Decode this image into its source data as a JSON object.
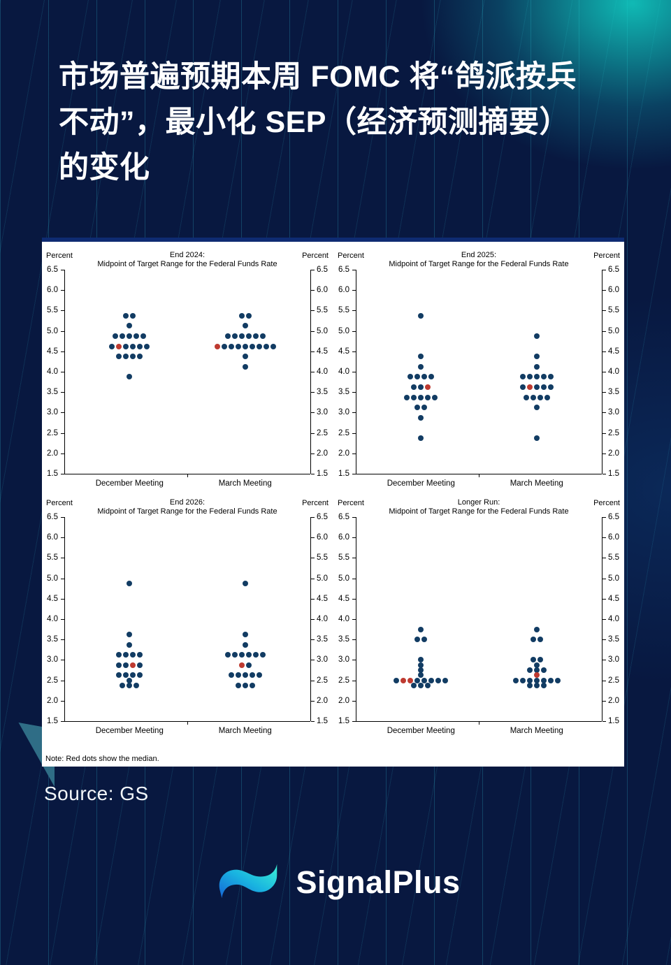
{
  "colors": {
    "background": "#081840",
    "accent_cyan": "#16dede",
    "panel_top_border": "#0e2b72",
    "dot": "#123c63",
    "median_dot": "#be3a30"
  },
  "title": {
    "lines": [
      "市场普遍预期本周 FOMC 将“鸽派按兵",
      "不动”，最小化 SEP（经济预测摘要）",
      "的变化"
    ]
  },
  "note": "Note: Red dots show the median.",
  "source": "Source: GS",
  "logo": {
    "text": "SignalPlus"
  },
  "chart_data": [
    {
      "type": "scatter",
      "id": "end-2024",
      "title": "End 2024:",
      "subtitle": "Midpoint of Target Range for the Federal Funds Rate",
      "ylabel": "Percent",
      "ylim": [
        1.5,
        6.5
      ],
      "ytick_step": 0.5,
      "categories": [
        "December Meeting",
        "March Meeting"
      ],
      "series": [
        {
          "name": "December Meeting",
          "dots": [
            {
              "y": 5.375,
              "n": 2
            },
            {
              "y": 5.125,
              "n": 1
            },
            {
              "y": 4.875,
              "n": 5
            },
            {
              "y": 4.625,
              "n": 6,
              "red": [
                1
              ]
            },
            {
              "y": 4.375,
              "n": 4
            },
            {
              "y": 3.875,
              "n": 1
            }
          ]
        },
        {
          "name": "March Meeting",
          "dots": [
            {
              "y": 5.375,
              "n": 2
            },
            {
              "y": 5.125,
              "n": 1
            },
            {
              "y": 4.875,
              "n": 6
            },
            {
              "y": 4.625,
              "n": 9,
              "red": [
                0
              ]
            },
            {
              "y": 4.375,
              "n": 1
            },
            {
              "y": 4.125,
              "n": 1
            }
          ]
        }
      ]
    },
    {
      "type": "scatter",
      "id": "end-2025",
      "title": "End 2025:",
      "subtitle": "Midpoint of Target Range for the Federal Funds Rate",
      "ylabel": "Percent",
      "ylim": [
        1.5,
        6.5
      ],
      "ytick_step": 0.5,
      "categories": [
        "December Meeting",
        "March Meeting"
      ],
      "series": [
        {
          "name": "December Meeting",
          "dots": [
            {
              "y": 5.375,
              "n": 1
            },
            {
              "y": 4.375,
              "n": 1
            },
            {
              "y": 4.125,
              "n": 1
            },
            {
              "y": 3.875,
              "n": 4
            },
            {
              "y": 3.625,
              "n": 3,
              "red": [
                2
              ]
            },
            {
              "y": 3.375,
              "n": 5
            },
            {
              "y": 3.125,
              "n": 2
            },
            {
              "y": 2.875,
              "n": 1
            },
            {
              "y": 2.375,
              "n": 1
            }
          ]
        },
        {
          "name": "March Meeting",
          "dots": [
            {
              "y": 4.875,
              "n": 1
            },
            {
              "y": 4.375,
              "n": 1
            },
            {
              "y": 4.125,
              "n": 1
            },
            {
              "y": 3.875,
              "n": 5
            },
            {
              "y": 3.625,
              "n": 5,
              "red": [
                1
              ]
            },
            {
              "y": 3.375,
              "n": 4
            },
            {
              "y": 3.125,
              "n": 1
            },
            {
              "y": 2.375,
              "n": 1
            }
          ]
        }
      ]
    },
    {
      "type": "scatter",
      "id": "end-2026",
      "title": "End 2026:",
      "subtitle": "Midpoint of Target Range for the Federal Funds Rate",
      "ylabel": "Percent",
      "ylim": [
        1.5,
        6.5
      ],
      "ytick_step": 0.5,
      "categories": [
        "December Meeting",
        "March Meeting"
      ],
      "series": [
        {
          "name": "December Meeting",
          "dots": [
            {
              "y": 4.875,
              "n": 1
            },
            {
              "y": 3.625,
              "n": 1
            },
            {
              "y": 3.375,
              "n": 1
            },
            {
              "y": 3.125,
              "n": 4
            },
            {
              "y": 2.875,
              "n": 4,
              "red": [
                2
              ]
            },
            {
              "y": 2.625,
              "n": 4
            },
            {
              "y": 2.5,
              "n": 1
            },
            {
              "y": 2.375,
              "n": 3
            }
          ]
        },
        {
          "name": "March Meeting",
          "dots": [
            {
              "y": 4.875,
              "n": 1
            },
            {
              "y": 3.625,
              "n": 1
            },
            {
              "y": 3.375,
              "n": 1
            },
            {
              "y": 3.125,
              "n": 6
            },
            {
              "y": 2.875,
              "n": 2,
              "red": [
                0
              ]
            },
            {
              "y": 2.625,
              "n": 5
            },
            {
              "y": 2.375,
              "n": 3
            }
          ]
        }
      ]
    },
    {
      "type": "scatter",
      "id": "longer-run",
      "title": "Longer Run:",
      "subtitle": "Midpoint of Target Range for the Federal Funds Rate",
      "ylabel": "Percent",
      "ylim": [
        1.5,
        6.5
      ],
      "ytick_step": 0.5,
      "categories": [
        "December Meeting",
        "March Meeting"
      ],
      "series": [
        {
          "name": "December Meeting",
          "dots": [
            {
              "y": 3.75,
              "n": 1
            },
            {
              "y": 3.5,
              "n": 2
            },
            {
              "y": 3.0,
              "n": 1
            },
            {
              "y": 2.875,
              "n": 1
            },
            {
              "y": 2.75,
              "n": 1
            },
            {
              "y": 2.625,
              "n": 1
            },
            {
              "y": 2.5,
              "n": 8,
              "red": [
                1,
                2
              ]
            },
            {
              "y": 2.375,
              "n": 3
            }
          ]
        },
        {
          "name": "March Meeting",
          "dots": [
            {
              "y": 3.75,
              "n": 1
            },
            {
              "y": 3.5,
              "n": 2
            },
            {
              "y": 3.0,
              "n": 2
            },
            {
              "y": 2.875,
              "n": 1
            },
            {
              "y": 2.75,
              "n": 3
            },
            {
              "y": 2.625,
              "n": 1,
              "red": [
                0
              ]
            },
            {
              "y": 2.5,
              "n": 7
            },
            {
              "y": 2.375,
              "n": 3
            }
          ]
        }
      ]
    }
  ]
}
